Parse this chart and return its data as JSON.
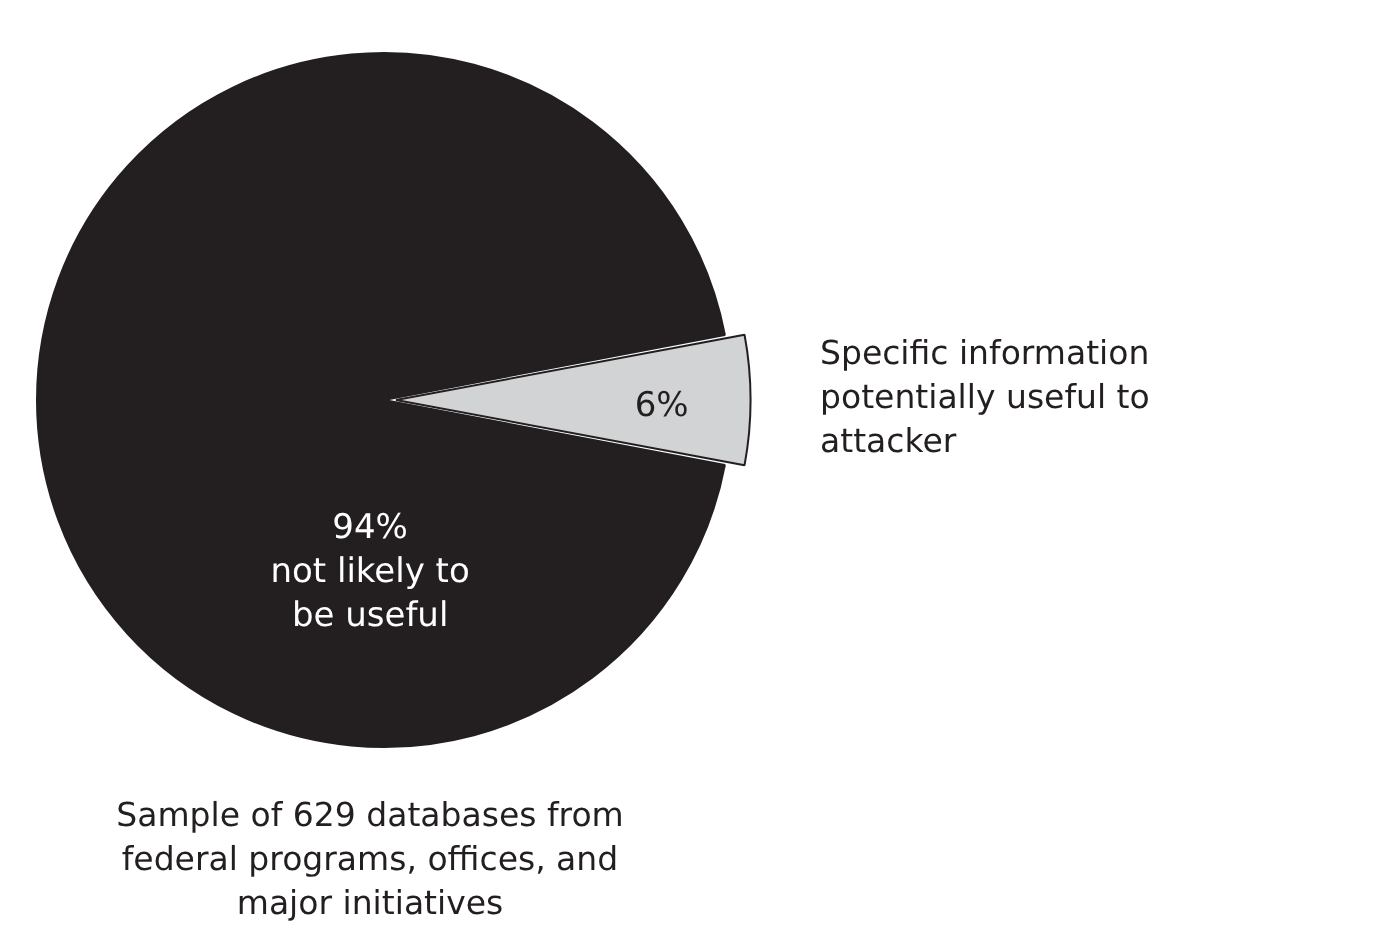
{
  "chart_data": {
    "type": "pie",
    "categories": [
      "not likely to be useful",
      "Specific information potentially useful to attacker"
    ],
    "values": [
      94,
      6
    ],
    "value_labels": [
      "94%",
      "6%"
    ],
    "colors": [
      "#231f20",
      "#d1d3d4"
    ],
    "legend": false,
    "annotations": [
      "Sample of 629 databases from federal programs, offices, and major initiatives"
    ]
  }
}
